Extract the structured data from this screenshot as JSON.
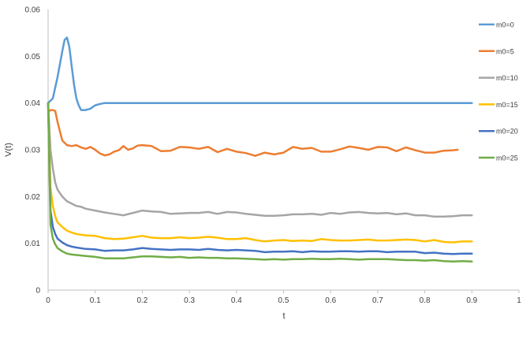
{
  "chart_data": {
    "type": "line",
    "title": "",
    "xlabel": "t",
    "ylabel": "V(t)",
    "xlim": [
      0,
      1
    ],
    "ylim": [
      0,
      0.06
    ],
    "x_ticks": [
      "0",
      "0.1",
      "0.2",
      "0.3",
      "0.4",
      "0.5",
      "0.6",
      "0.7",
      "0.8",
      "0.9",
      "1"
    ],
    "y_ticks": [
      "0",
      "0.01",
      "0.02",
      "0.03",
      "0.04",
      "0.05",
      "0.06"
    ],
    "grid": false,
    "legend_position": "right",
    "series": [
      {
        "name": "m0=0",
        "color": "#5b9bd5",
        "x": [
          0,
          0.01,
          0.02,
          0.03,
          0.035,
          0.04,
          0.045,
          0.05,
          0.055,
          0.06,
          0.065,
          0.07,
          0.08,
          0.09,
          0.1,
          0.11,
          0.12,
          0.14,
          0.16,
          0.2,
          0.3,
          0.4,
          0.5,
          0.6,
          0.7,
          0.8,
          0.9
        ],
        "y": [
          0.04,
          0.041,
          0.0455,
          0.051,
          0.0535,
          0.054,
          0.052,
          0.048,
          0.044,
          0.041,
          0.0395,
          0.0385,
          0.0385,
          0.0388,
          0.0395,
          0.0398,
          0.04,
          0.04,
          0.04,
          0.04,
          0.04,
          0.04,
          0.04,
          0.04,
          0.04,
          0.04,
          0.04
        ]
      },
      {
        "name": "m0=5",
        "color": "#ed7d31",
        "x": [
          0,
          0.005,
          0.01,
          0.015,
          0.02,
          0.025,
          0.03,
          0.035,
          0.04,
          0.05,
          0.06,
          0.07,
          0.08,
          0.09,
          0.1,
          0.11,
          0.12,
          0.13,
          0.14,
          0.15,
          0.16,
          0.17,
          0.18,
          0.19,
          0.2,
          0.22,
          0.24,
          0.26,
          0.28,
          0.3,
          0.32,
          0.34,
          0.36,
          0.38,
          0.4,
          0.42,
          0.44,
          0.46,
          0.48,
          0.5,
          0.52,
          0.54,
          0.56,
          0.58,
          0.6,
          0.62,
          0.64,
          0.66,
          0.68,
          0.7,
          0.72,
          0.74,
          0.76,
          0.78,
          0.8,
          0.82,
          0.84,
          0.86,
          0.87
        ],
        "y": [
          0.038,
          0.0385,
          0.0385,
          0.0383,
          0.036,
          0.034,
          0.032,
          0.0315,
          0.031,
          0.0308,
          0.031,
          0.0305,
          0.0302,
          0.0306,
          0.03,
          0.0292,
          0.0288,
          0.029,
          0.0296,
          0.0299,
          0.0308,
          0.03,
          0.0303,
          0.0309,
          0.031,
          0.0308,
          0.0297,
          0.0298,
          0.0306,
          0.0305,
          0.0302,
          0.0306,
          0.0295,
          0.0302,
          0.0296,
          0.0293,
          0.0287,
          0.0294,
          0.029,
          0.0294,
          0.0306,
          0.0302,
          0.0304,
          0.0296,
          0.0296,
          0.0301,
          0.0307,
          0.0304,
          0.03,
          0.0306,
          0.0305,
          0.0297,
          0.0305,
          0.0299,
          0.0294,
          0.0294,
          0.0298,
          0.0299,
          0.03
        ]
      },
      {
        "name": "m0=10",
        "color": "#a5a5a5",
        "x": [
          0,
          0.005,
          0.01,
          0.015,
          0.02,
          0.03,
          0.04,
          0.05,
          0.06,
          0.07,
          0.08,
          0.1,
          0.12,
          0.14,
          0.16,
          0.18,
          0.2,
          0.22,
          0.24,
          0.26,
          0.28,
          0.3,
          0.32,
          0.34,
          0.36,
          0.38,
          0.4,
          0.42,
          0.44,
          0.46,
          0.48,
          0.5,
          0.52,
          0.54,
          0.56,
          0.58,
          0.6,
          0.62,
          0.64,
          0.66,
          0.68,
          0.7,
          0.72,
          0.74,
          0.76,
          0.78,
          0.8,
          0.82,
          0.84,
          0.86,
          0.88,
          0.9
        ],
        "y": [
          0.04,
          0.03,
          0.026,
          0.023,
          0.0215,
          0.02,
          0.019,
          0.0185,
          0.018,
          0.0178,
          0.0174,
          0.017,
          0.0166,
          0.0163,
          0.016,
          0.0165,
          0.017,
          0.0168,
          0.0167,
          0.0163,
          0.0164,
          0.0165,
          0.0165,
          0.0167,
          0.0163,
          0.0167,
          0.0166,
          0.0163,
          0.0161,
          0.0159,
          0.0159,
          0.016,
          0.0162,
          0.0162,
          0.0163,
          0.0161,
          0.0165,
          0.0163,
          0.0166,
          0.0167,
          0.0165,
          0.0164,
          0.0165,
          0.0162,
          0.0164,
          0.016,
          0.016,
          0.0157,
          0.0157,
          0.0158,
          0.016,
          0.016
        ]
      },
      {
        "name": "m0=15",
        "color": "#ffc000",
        "x": [
          0,
          0.005,
          0.01,
          0.015,
          0.02,
          0.03,
          0.04,
          0.05,
          0.06,
          0.08,
          0.1,
          0.12,
          0.14,
          0.16,
          0.18,
          0.2,
          0.22,
          0.24,
          0.26,
          0.28,
          0.3,
          0.32,
          0.34,
          0.36,
          0.38,
          0.4,
          0.42,
          0.44,
          0.46,
          0.48,
          0.5,
          0.52,
          0.54,
          0.56,
          0.58,
          0.6,
          0.62,
          0.64,
          0.66,
          0.68,
          0.7,
          0.72,
          0.74,
          0.76,
          0.78,
          0.8,
          0.82,
          0.84,
          0.86,
          0.88,
          0.9
        ],
        "y": [
          0.04,
          0.022,
          0.018,
          0.0158,
          0.0145,
          0.0135,
          0.0127,
          0.0123,
          0.012,
          0.0117,
          0.0116,
          0.0111,
          0.0109,
          0.011,
          0.0113,
          0.0116,
          0.0112,
          0.0111,
          0.0111,
          0.0113,
          0.0111,
          0.0112,
          0.0114,
          0.0112,
          0.0109,
          0.0109,
          0.0111,
          0.0107,
          0.0104,
          0.0106,
          0.0107,
          0.0105,
          0.0106,
          0.0105,
          0.0109,
          0.0107,
          0.0106,
          0.0106,
          0.0107,
          0.0108,
          0.0106,
          0.0106,
          0.0107,
          0.0108,
          0.0107,
          0.0104,
          0.0107,
          0.0103,
          0.0102,
          0.0104,
          0.0104
        ]
      },
      {
        "name": "m0=20",
        "color": "#4472c4",
        "x": [
          0,
          0.005,
          0.01,
          0.015,
          0.02,
          0.03,
          0.04,
          0.05,
          0.06,
          0.08,
          0.1,
          0.12,
          0.14,
          0.16,
          0.18,
          0.2,
          0.22,
          0.24,
          0.26,
          0.28,
          0.3,
          0.32,
          0.34,
          0.36,
          0.38,
          0.4,
          0.42,
          0.44,
          0.46,
          0.48,
          0.5,
          0.52,
          0.54,
          0.56,
          0.58,
          0.6,
          0.62,
          0.64,
          0.66,
          0.68,
          0.7,
          0.72,
          0.74,
          0.76,
          0.78,
          0.8,
          0.82,
          0.84,
          0.86,
          0.88,
          0.9
        ],
        "y": [
          0.04,
          0.017,
          0.0135,
          0.012,
          0.011,
          0.0102,
          0.0096,
          0.0093,
          0.0091,
          0.0088,
          0.0087,
          0.0084,
          0.0085,
          0.0085,
          0.0087,
          0.009,
          0.0088,
          0.0087,
          0.0086,
          0.0087,
          0.0087,
          0.0086,
          0.0088,
          0.0086,
          0.0085,
          0.0086,
          0.0085,
          0.0084,
          0.0081,
          0.0082,
          0.0082,
          0.0083,
          0.0081,
          0.0083,
          0.0082,
          0.0082,
          0.0083,
          0.0083,
          0.0082,
          0.0083,
          0.0083,
          0.0081,
          0.0082,
          0.0082,
          0.0082,
          0.0079,
          0.008,
          0.0078,
          0.0077,
          0.0078,
          0.0078
        ]
      },
      {
        "name": "m0=25",
        "color": "#70ad47",
        "x": [
          0,
          0.005,
          0.01,
          0.015,
          0.02,
          0.03,
          0.04,
          0.05,
          0.06,
          0.08,
          0.1,
          0.12,
          0.14,
          0.16,
          0.18,
          0.2,
          0.22,
          0.24,
          0.26,
          0.28,
          0.3,
          0.32,
          0.34,
          0.36,
          0.38,
          0.4,
          0.42,
          0.44,
          0.46,
          0.48,
          0.5,
          0.52,
          0.54,
          0.56,
          0.58,
          0.6,
          0.62,
          0.64,
          0.66,
          0.68,
          0.7,
          0.72,
          0.74,
          0.76,
          0.78,
          0.8,
          0.82,
          0.84,
          0.86,
          0.88,
          0.9
        ],
        "y": [
          0.04,
          0.014,
          0.011,
          0.0098,
          0.009,
          0.0083,
          0.0078,
          0.0076,
          0.0075,
          0.0073,
          0.0071,
          0.0068,
          0.0068,
          0.0068,
          0.007,
          0.0072,
          0.0072,
          0.0071,
          0.007,
          0.0071,
          0.0069,
          0.007,
          0.0069,
          0.0069,
          0.0068,
          0.0068,
          0.0067,
          0.0066,
          0.0065,
          0.0066,
          0.0065,
          0.0066,
          0.0066,
          0.0067,
          0.0066,
          0.0066,
          0.0067,
          0.0066,
          0.0065,
          0.0066,
          0.0066,
          0.0066,
          0.0065,
          0.0064,
          0.0064,
          0.0063,
          0.0064,
          0.0062,
          0.0061,
          0.0062,
          0.0061
        ]
      }
    ]
  }
}
